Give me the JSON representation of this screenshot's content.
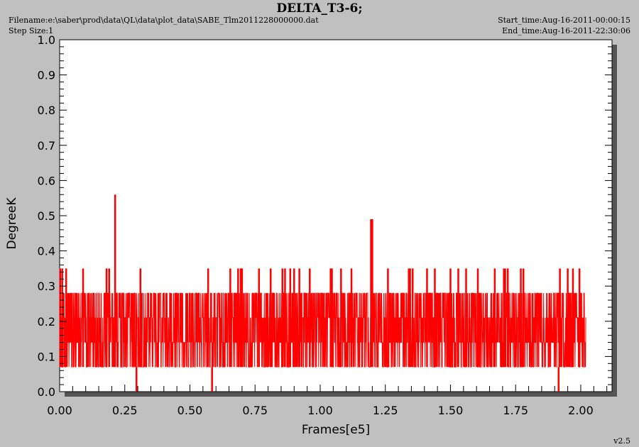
{
  "header": {
    "title": "DELTA_T3-6;",
    "filename": "Filename:e:\\saber\\prod\\data\\QL\\data\\plot_data\\SABE_Tlm2011228000000.dat",
    "step_size": "Step Size:1",
    "start_time": "Start_time:Aug-16-2011-00:00:15",
    "end_time": "End_time:Aug-16-2011-22:30:06",
    "version": "v2.5"
  },
  "colors": {
    "series": "#ff0000",
    "plot_background": "#ffffff",
    "page_background": "#c0c0c0",
    "shadow": "#555555"
  },
  "chart_data": {
    "type": "line",
    "title": "DELTA_T3-6;",
    "xlabel": "Frames[e5]",
    "ylabel": "DegreeK",
    "xlim": [
      0,
      2.12
    ],
    "ylim": [
      0,
      1.0
    ],
    "x_ticks": [
      "0.00",
      "0.25",
      "0.50",
      "0.75",
      "1.00",
      "1.25",
      "1.50",
      "1.75",
      "2.00"
    ],
    "y_ticks": [
      "0.0",
      "0.1",
      "0.2",
      "0.3",
      "0.4",
      "0.5",
      "0.6",
      "0.7",
      "0.8",
      "0.9",
      "1.0"
    ],
    "grid": false,
    "legend": "none",
    "series": [
      {
        "values_range": [
          0.07,
          0.28
        ],
        "x_range": [
          0,
          2.02
        ],
        "spikes": [
          {
            "x": 0.002,
            "y": 0.35
          },
          {
            "x": 0.01,
            "y": 0.35
          },
          {
            "x": 0.025,
            "y": 0.35
          },
          {
            "x": 0.09,
            "y": 0.35
          },
          {
            "x": 0.18,
            "y": 0.35
          },
          {
            "x": 0.19,
            "y": 0.35
          },
          {
            "x": 0.213,
            "y": 0.56
          },
          {
            "x": 0.31,
            "y": 0.35
          },
          {
            "x": 0.57,
            "y": 0.35
          },
          {
            "x": 0.655,
            "y": 0.35
          },
          {
            "x": 0.685,
            "y": 0.35
          },
          {
            "x": 0.695,
            "y": 0.35
          },
          {
            "x": 0.7,
            "y": 0.35
          },
          {
            "x": 0.765,
            "y": 0.35
          },
          {
            "x": 0.81,
            "y": 0.35
          },
          {
            "x": 0.855,
            "y": 0.35
          },
          {
            "x": 0.865,
            "y": 0.35
          },
          {
            "x": 0.885,
            "y": 0.35
          },
          {
            "x": 0.9,
            "y": 0.35
          },
          {
            "x": 0.92,
            "y": 0.35
          },
          {
            "x": 0.96,
            "y": 0.35
          },
          {
            "x": 1.04,
            "y": 0.35
          },
          {
            "x": 1.045,
            "y": 0.35
          },
          {
            "x": 1.08,
            "y": 0.35
          },
          {
            "x": 1.12,
            "y": 0.35
          },
          {
            "x": 1.195,
            "y": 0.49
          },
          {
            "x": 1.2,
            "y": 0.49
          },
          {
            "x": 1.26,
            "y": 0.35
          },
          {
            "x": 1.34,
            "y": 0.35
          },
          {
            "x": 1.345,
            "y": 0.35
          },
          {
            "x": 1.355,
            "y": 0.35
          },
          {
            "x": 1.41,
            "y": 0.35
          },
          {
            "x": 1.44,
            "y": 0.35
          },
          {
            "x": 1.5,
            "y": 0.35
          },
          {
            "x": 1.53,
            "y": 0.35
          },
          {
            "x": 1.56,
            "y": 0.35
          },
          {
            "x": 1.605,
            "y": 0.35
          },
          {
            "x": 1.67,
            "y": 0.35
          },
          {
            "x": 1.705,
            "y": 0.35
          },
          {
            "x": 1.71,
            "y": 0.35
          },
          {
            "x": 1.72,
            "y": 0.35
          },
          {
            "x": 1.77,
            "y": 0.35
          },
          {
            "x": 1.78,
            "y": 0.35
          },
          {
            "x": 1.92,
            "y": 0.35
          },
          {
            "x": 1.95,
            "y": 0.35
          },
          {
            "x": 1.97,
            "y": 0.35
          },
          {
            "x": 1.995,
            "y": 0.35
          }
        ],
        "dips": [
          {
            "x": 0.295,
            "y": 0.0
          },
          {
            "x": 0.585,
            "y": 0.0
          },
          {
            "x": 1.915,
            "y": 0.0
          }
        ]
      }
    ]
  }
}
